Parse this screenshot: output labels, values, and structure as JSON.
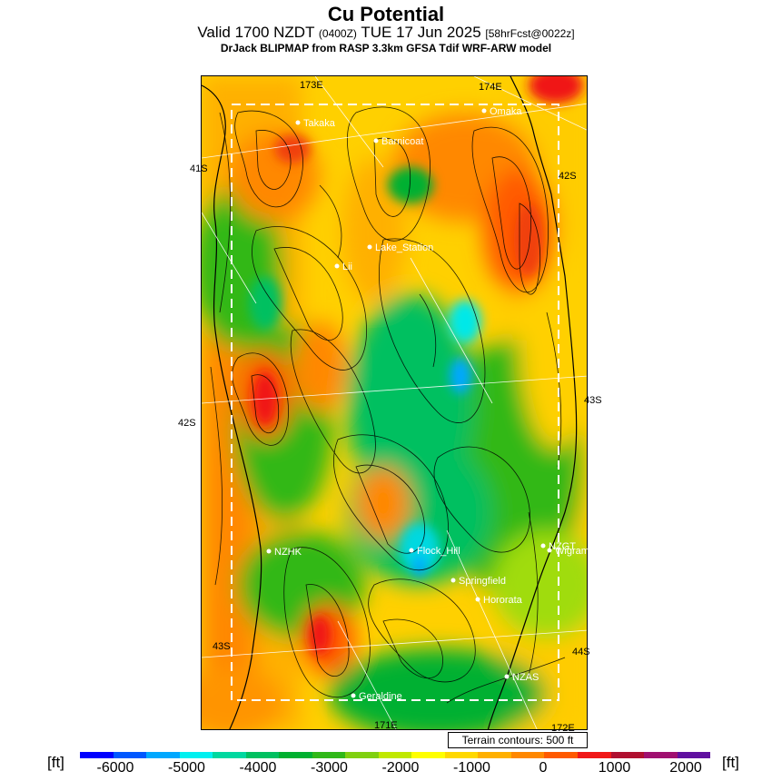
{
  "header": {
    "title": "Cu Potential",
    "valid_main": "Valid 1700 NZDT",
    "valid_zulu": "(0400Z)",
    "valid_date": "TUE 17 Jun 2025",
    "forecast_tag": "[58hrFcst@0022z]",
    "subtitle": "DrJack BLIPMAP from RASP 3.3km GFSA Tdif WRF-ARW model"
  },
  "map": {
    "grid_labels": [
      "173E",
      "174E",
      "41S",
      "42S",
      "43S",
      "42S",
      "43S",
      "44S",
      "171E",
      "172E"
    ],
    "locations": [
      "Takaka",
      "Omaka",
      "Barnicoat",
      "Lake_Station",
      "Lii",
      "NZHK",
      "Flock_Hill",
      "NZGT",
      "Wigram",
      "Springfield",
      "Hororata",
      "NZAS",
      "Geraldine"
    ],
    "terrain_contours": "Terrain contours: 500 ft"
  },
  "colorbar": {
    "unit_left": "[ft]",
    "unit_right": "[ft]",
    "colors": [
      "#0000ff",
      "#0058ff",
      "#00a8ff",
      "#00f0f0",
      "#00d8a0",
      "#00c060",
      "#00b030",
      "#30b818",
      "#80d010",
      "#c0e800",
      "#ffff00",
      "#ffd800",
      "#ffb000",
      "#ff8800",
      "#ff5a00",
      "#f01818",
      "#b01030",
      "#a01070",
      "#6010a0"
    ],
    "tick_labels": [
      "-6000",
      "-5000",
      "-4000",
      "-3000",
      "-2000",
      "-1000",
      "0",
      "1000",
      "2000"
    ]
  }
}
